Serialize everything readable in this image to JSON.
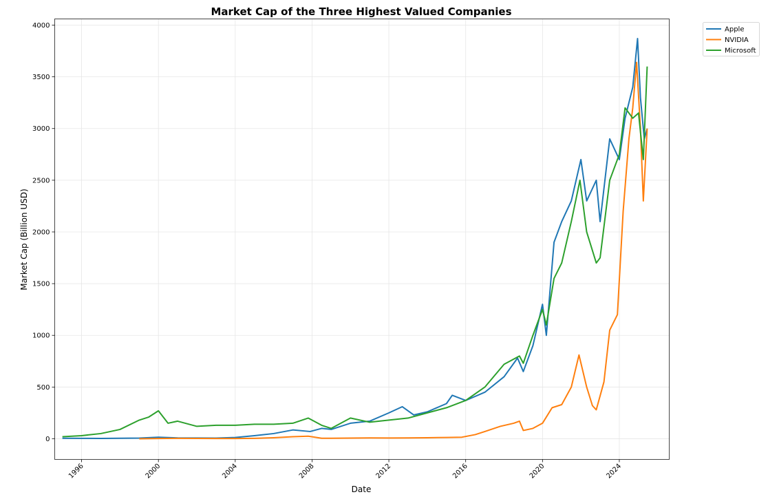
{
  "chart_data": {
    "type": "line",
    "title": "Market Cap of the Three Highest Valued Companies",
    "xlabel": "Date",
    "ylabel": "Market Cap (Billion USD)",
    "xlim": [
      1994.6,
      2026.6
    ],
    "ylim": [
      -200,
      4060
    ],
    "x_ticks": [
      1996,
      2000,
      2004,
      2008,
      2012,
      2016,
      2020,
      2024
    ],
    "y_ticks": [
      0,
      500,
      1000,
      1500,
      2000,
      2500,
      3000,
      3500,
      4000
    ],
    "grid": true,
    "legend_position": "outside-top-right",
    "series": [
      {
        "name": "Apple",
        "color": "#1f77b4",
        "x": [
          1995.0,
          1996.0,
          1997.0,
          1998.0,
          1999.0,
          2000.0,
          2001.0,
          2002.0,
          2003.0,
          2004.0,
          2005.0,
          2006.0,
          2007.0,
          2007.9,
          2008.5,
          2009.0,
          2010.0,
          2011.0,
          2012.0,
          2012.7,
          2013.3,
          2014.0,
          2015.0,
          2015.3,
          2016.0,
          2017.0,
          2018.0,
          2018.7,
          2019.0,
          2019.5,
          2020.0,
          2020.2,
          2020.6,
          2021.0,
          2021.5,
          2022.0,
          2022.3,
          2022.8,
          2023.0,
          2023.5,
          2024.0,
          2024.3,
          2024.7,
          2024.95,
          2025.1,
          2025.3,
          2025.45
        ],
        "y": [
          5,
          4,
          3,
          5,
          6,
          15,
          8,
          7,
          6,
          12,
          30,
          50,
          85,
          70,
          100,
          90,
          150,
          170,
          250,
          310,
          230,
          260,
          340,
          420,
          370,
          450,
          600,
          780,
          650,
          900,
          1300,
          1000,
          1900,
          2100,
          2300,
          2700,
          2300,
          2500,
          2100,
          2900,
          2700,
          3100,
          3400,
          3870,
          3300,
          2900,
          3000
        ]
      },
      {
        "name": "NVIDIA",
        "color": "#ff7f0e",
        "x": [
          1999.0,
          2000.0,
          2001.0,
          2002.0,
          2003.0,
          2004.0,
          2005.0,
          2006.0,
          2007.0,
          2007.8,
          2008.5,
          2009.0,
          2010.0,
          2011.0,
          2012.0,
          2013.0,
          2014.0,
          2015.0,
          2015.8,
          2016.5,
          2017.0,
          2017.8,
          2018.5,
          2018.8,
          2019.0,
          2019.5,
          2020.0,
          2020.5,
          2021.0,
          2021.5,
          2021.9,
          2022.3,
          2022.6,
          2022.8,
          2023.2,
          2023.5,
          2023.9,
          2024.2,
          2024.5,
          2024.7,
          2024.9,
          2025.1,
          2025.25,
          2025.45
        ],
        "y": [
          0,
          2,
          4,
          3,
          2,
          2,
          4,
          10,
          20,
          25,
          5,
          5,
          6,
          8,
          7,
          8,
          10,
          12,
          15,
          40,
          70,
          120,
          150,
          170,
          80,
          100,
          150,
          300,
          330,
          500,
          810,
          500,
          320,
          280,
          550,
          1050,
          1200,
          2200,
          2900,
          3200,
          3640,
          3000,
          2300,
          3000
        ]
      },
      {
        "name": "Microsoft",
        "color": "#2ca02c",
        "x": [
          1995.0,
          1996.0,
          1997.0,
          1998.0,
          1999.0,
          1999.5,
          2000.0,
          2000.5,
          2001.0,
          2002.0,
          2003.0,
          2004.0,
          2005.0,
          2006.0,
          2007.0,
          2007.8,
          2008.5,
          2009.0,
          2010.0,
          2011.0,
          2012.0,
          2013.0,
          2014.0,
          2015.0,
          2016.0,
          2017.0,
          2018.0,
          2018.8,
          2019.0,
          2019.5,
          2020.0,
          2020.2,
          2020.6,
          2021.0,
          2021.5,
          2021.95,
          2022.3,
          2022.8,
          2023.0,
          2023.5,
          2024.0,
          2024.3,
          2024.7,
          2025.0,
          2025.25,
          2025.45
        ],
        "y": [
          20,
          30,
          50,
          90,
          180,
          210,
          270,
          150,
          170,
          120,
          130,
          130,
          140,
          140,
          150,
          200,
          130,
          100,
          200,
          160,
          180,
          200,
          250,
          300,
          370,
          500,
          720,
          800,
          730,
          1000,
          1250,
          1100,
          1550,
          1700,
          2100,
          2500,
          2000,
          1700,
          1750,
          2500,
          2750,
          3200,
          3100,
          3150,
          2700,
          3600
        ]
      }
    ]
  }
}
